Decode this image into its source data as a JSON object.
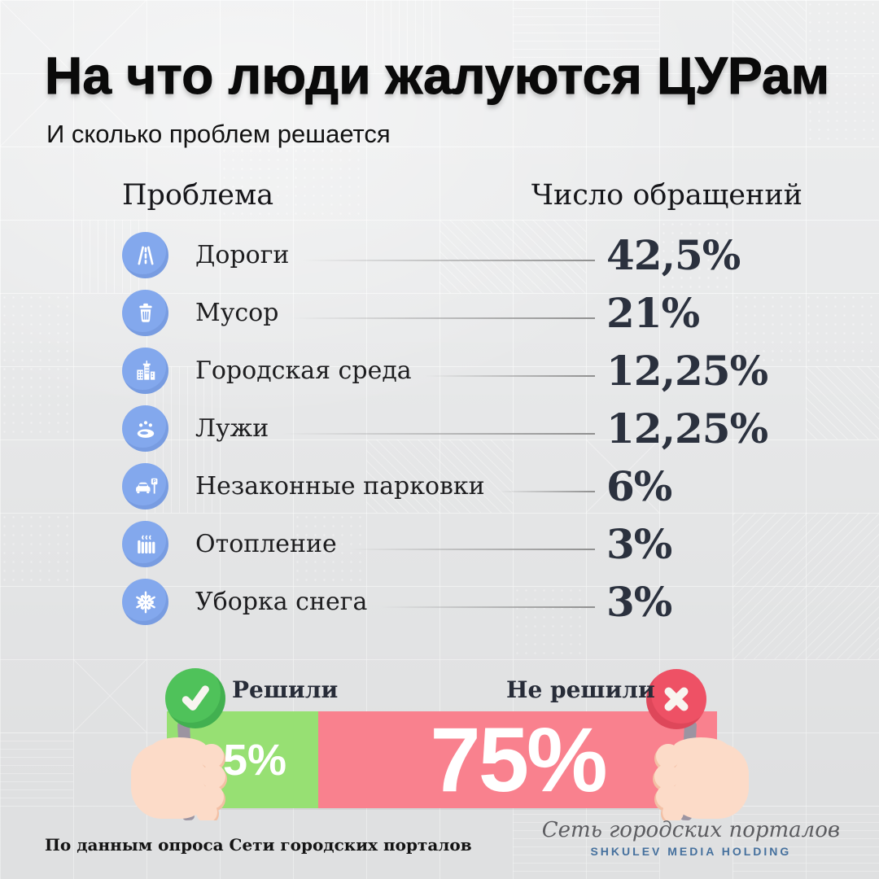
{
  "title": "На что люди жалуются ЦУРам",
  "subtitle": "И сколько проблем решается",
  "table": {
    "col_problem": "Проблема",
    "col_count": "Число обращений",
    "rows": [
      {
        "icon": "road-icon",
        "label": "Дороги",
        "value": "42,5%"
      },
      {
        "icon": "trash-icon",
        "label": "Мусор",
        "value": "21%"
      },
      {
        "icon": "city-icon",
        "label": "Городская среда",
        "value": "12,25%"
      },
      {
        "icon": "puddle-icon",
        "label": "Лужи",
        "value": "12,25%"
      },
      {
        "icon": "parking-icon",
        "label": "Незаконные парковки",
        "value": "6%"
      },
      {
        "icon": "heating-icon",
        "label": "Отопление",
        "value": "3%"
      },
      {
        "icon": "snowflake-icon",
        "label": "Уборка снега",
        "value": "3%"
      }
    ]
  },
  "resolution": {
    "solved_label": "Решили",
    "solved_value": "25%",
    "solved_pct": 25,
    "unsolved_label": "Не решили",
    "unsolved_value": "75%",
    "unsolved_pct": 75
  },
  "footer": {
    "source": "По данным опроса Сети городских порталов",
    "brand_script": "Сеть городских порталов",
    "brand_holding": "SHKULEV MEDIA HOLDING"
  },
  "colors": {
    "background": "#e9eaeb",
    "icon_blue": "#83a8ed",
    "dark_text": "#2b313e",
    "label_text": "#1d1d1f",
    "leader": "#8f8f8f",
    "green_bar": "#97e073",
    "green_paddle": "#4fc25a",
    "pink_bar": "#f9818e",
    "red_paddle": "#ee5165",
    "skin": "#fcdbc8",
    "skin_shade": "#f3c0a5",
    "stick": "#9c94a1",
    "brand_blue": "#46719e"
  },
  "chart_data": [
    {
      "type": "bar",
      "title": "Число обращений",
      "categories": [
        "Дороги",
        "Мусор",
        "Городская среда",
        "Лужи",
        "Незаконные парковки",
        "Отопление",
        "Уборка снега"
      ],
      "values": [
        42.5,
        21,
        12.25,
        12.25,
        6,
        3,
        3
      ],
      "unit": "%",
      "xlabel": "Проблема",
      "ylabel": "Число обращений"
    },
    {
      "type": "bar",
      "subtype": "stacked-horizontal",
      "title": "Сколько проблем решается",
      "categories": [
        "Решили",
        "Не решили"
      ],
      "values": [
        25,
        75
      ],
      "unit": "%",
      "colors": [
        "#97e073",
        "#f9818e"
      ],
      "legend_position": "above"
    }
  ]
}
